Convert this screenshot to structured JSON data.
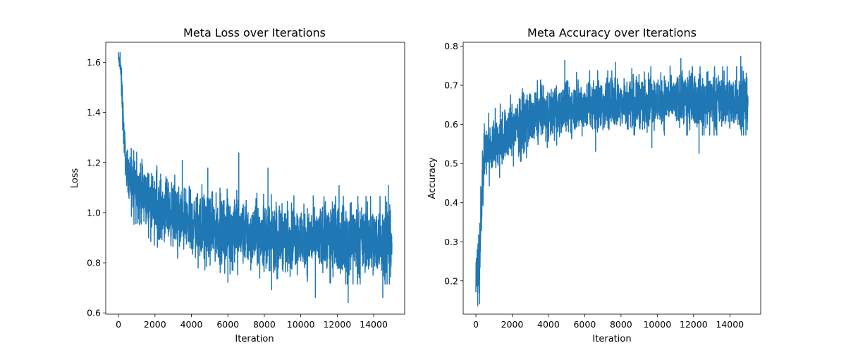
{
  "chart_data": [
    {
      "type": "line",
      "title": "Meta Loss over Iterations",
      "xlabel": "Iteration",
      "ylabel": "Loss",
      "xlim": [
        -700,
        15700
      ],
      "ylim": [
        0.595,
        1.68
      ],
      "xticks": [
        0,
        2000,
        4000,
        6000,
        8000,
        10000,
        12000,
        14000
      ],
      "yticks": [
        0.6,
        0.8,
        1.0,
        1.2,
        1.4,
        1.6
      ],
      "ytick_labels": [
        "0.6",
        "0.8",
        "1.0",
        "1.2",
        "1.4",
        "1.6"
      ],
      "grid": false,
      "color": "#1f77b4",
      "series": [
        {
          "x": [
            0,
            100,
            200,
            300,
            400,
            600,
            800,
            1000,
            1500,
            2000,
            3000,
            4000,
            5000,
            6000,
            7000,
            8000,
            9000,
            10000,
            11000,
            12000,
            13000,
            14000,
            15000
          ],
          "lower": [
            1.59,
            1.55,
            1.38,
            1.22,
            1.12,
            1.04,
            0.99,
            0.96,
            0.93,
            0.9,
            0.86,
            0.82,
            0.8,
            0.79,
            0.78,
            0.77,
            0.77,
            0.76,
            0.76,
            0.75,
            0.75,
            0.75,
            0.75
          ],
          "upper": [
            1.63,
            1.63,
            1.55,
            1.38,
            1.27,
            1.24,
            1.22,
            1.21,
            1.19,
            1.16,
            1.12,
            1.09,
            1.07,
            1.06,
            1.05,
            1.04,
            1.04,
            1.03,
            1.03,
            1.03,
            1.03,
            1.03,
            1.03
          ],
          "spikes": [
            {
              "x": 0,
              "y": 1.64
            },
            {
              "x": 3500,
              "y": 1.21
            },
            {
              "x": 4900,
              "y": 1.18
            },
            {
              "x": 6600,
              "y": 1.24
            },
            {
              "x": 8200,
              "y": 1.18
            },
            {
              "x": 12100,
              "y": 1.11
            },
            {
              "x": 14800,
              "y": 1.11
            },
            {
              "x": 8400,
              "y": 0.69
            },
            {
              "x": 10800,
              "y": 0.66
            },
            {
              "x": 12600,
              "y": 0.64
            },
            {
              "x": 14500,
              "y": 0.66
            },
            {
              "x": 6000,
              "y": 0.72
            }
          ]
        }
      ]
    },
    {
      "type": "line",
      "title": "Meta Accuracy over Iterations",
      "xlabel": "Iteration",
      "ylabel": "Accuracy",
      "xlim": [
        -700,
        15700
      ],
      "ylim": [
        0.115,
        0.81
      ],
      "xticks": [
        0,
        2000,
        4000,
        6000,
        8000,
        10000,
        12000,
        14000
      ],
      "yticks": [
        0.2,
        0.3,
        0.4,
        0.5,
        0.6,
        0.7,
        0.8
      ],
      "ytick_labels": [
        "0.2",
        "0.3",
        "0.4",
        "0.5",
        "0.6",
        "0.7",
        "0.8"
      ],
      "grid": false,
      "color": "#1f77b4",
      "series": [
        {
          "x": [
            0,
            100,
            200,
            300,
            400,
            500,
            700,
            1000,
            1500,
            2000,
            3000,
            4000,
            5000,
            6000,
            7000,
            8000,
            9000,
            10000,
            11000,
            12000,
            13000,
            14000,
            15000
          ],
          "lower": [
            0.14,
            0.14,
            0.18,
            0.32,
            0.42,
            0.45,
            0.46,
            0.47,
            0.49,
            0.51,
            0.54,
            0.56,
            0.57,
            0.58,
            0.58,
            0.59,
            0.59,
            0.59,
            0.59,
            0.59,
            0.59,
            0.59,
            0.59
          ],
          "upper": [
            0.27,
            0.28,
            0.34,
            0.5,
            0.57,
            0.59,
            0.61,
            0.62,
            0.64,
            0.66,
            0.69,
            0.7,
            0.71,
            0.72,
            0.72,
            0.72,
            0.73,
            0.73,
            0.73,
            0.73,
            0.73,
            0.73,
            0.73
          ],
          "spikes": [
            {
              "x": 100,
              "y": 0.135
            },
            {
              "x": 200,
              "y": 0.14
            },
            {
              "x": 4900,
              "y": 0.765
            },
            {
              "x": 7700,
              "y": 0.76
            },
            {
              "x": 11300,
              "y": 0.77
            },
            {
              "x": 14600,
              "y": 0.775
            },
            {
              "x": 12300,
              "y": 0.525
            },
            {
              "x": 6600,
              "y": 0.53
            },
            {
              "x": 9700,
              "y": 0.54
            }
          ]
        }
      ]
    }
  ]
}
